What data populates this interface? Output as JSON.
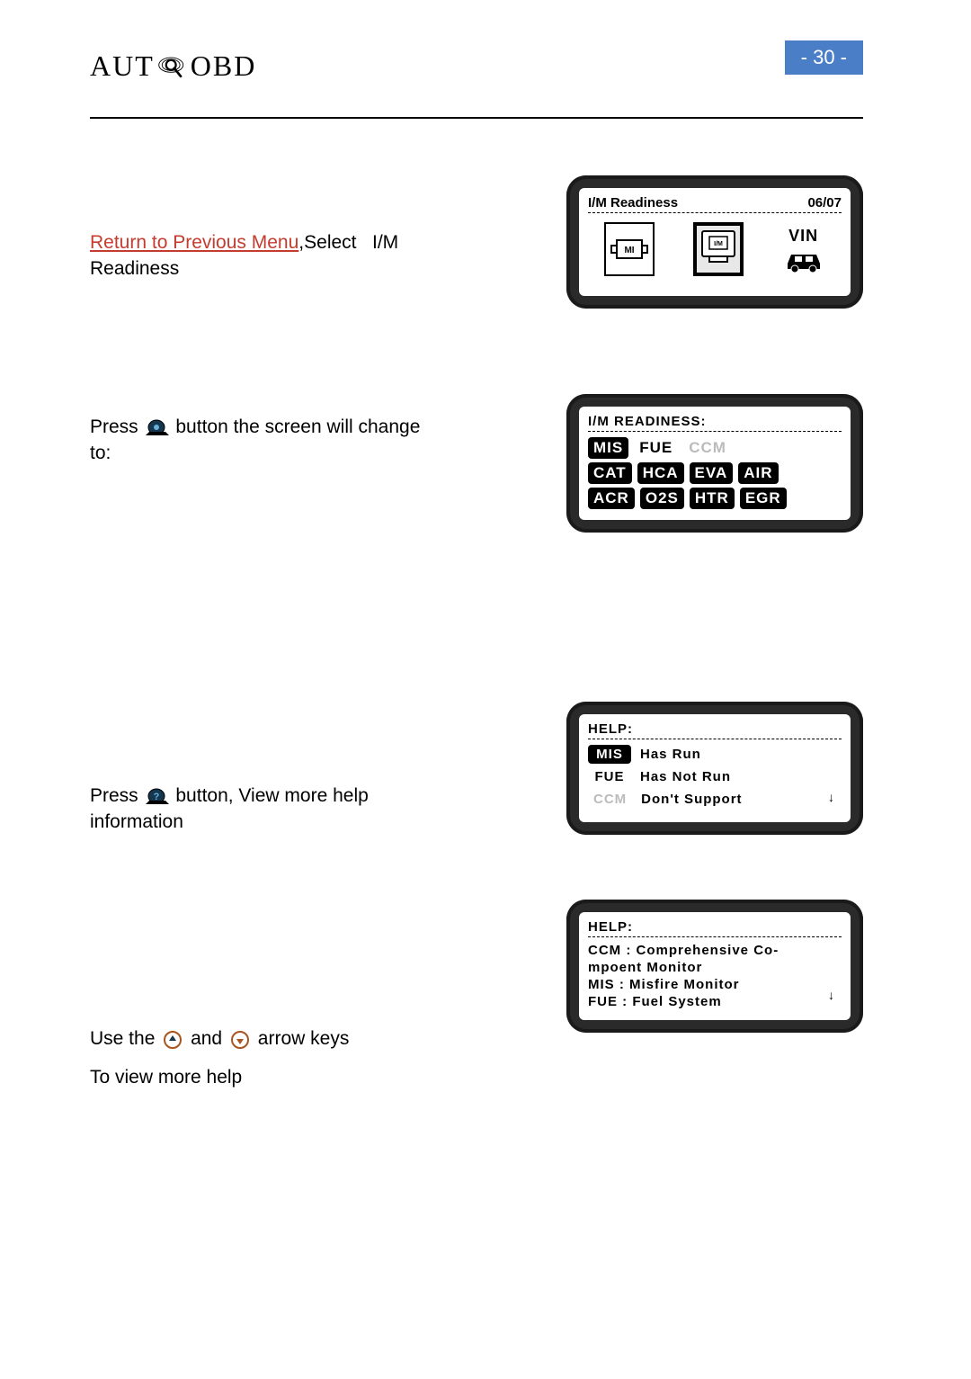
{
  "page_number": "- 30 -",
  "logo": {
    "left": "AUT",
    "right": "OBD"
  },
  "colors": {
    "badge_bg": "#4a7fc8",
    "link": "#c43c2f",
    "device_bg": "#2a2a2a"
  },
  "section1": {
    "link_text": "Return to Previous Menu",
    "rest": ",Select   I/M Readiness",
    "screen": {
      "title": "I/M  Readiness",
      "counter": "06/07",
      "icon1": "MI",
      "icon2": "I/M",
      "vin": "VIN"
    }
  },
  "section2": {
    "before": "Press",
    "after": "button the screen will change to:",
    "screen": {
      "title": "I/M READINESS:",
      "rows": [
        [
          {
            "label": "MIS",
            "style": "dark"
          },
          {
            "label": "FUE",
            "style": "outline"
          },
          {
            "label": "CCM",
            "style": "gray"
          }
        ],
        [
          {
            "label": "CAT",
            "style": "dark"
          },
          {
            "label": "HCA",
            "style": "dark"
          },
          {
            "label": "EVA",
            "style": "dark"
          },
          {
            "label": "AIR",
            "style": "dark"
          }
        ],
        [
          {
            "label": "ACR",
            "style": "dark"
          },
          {
            "label": "O2S",
            "style": "dark"
          },
          {
            "label": "HTR",
            "style": "dark"
          },
          {
            "label": "EGR",
            "style": "dark"
          }
        ]
      ]
    }
  },
  "section3": {
    "before": "Press",
    "after": "button, View more help information",
    "screen": {
      "title": "HELP:",
      "rows": [
        {
          "tag": "MIS",
          "tag_style": "dark",
          "text": "Has  Run"
        },
        {
          "tag": "FUE",
          "tag_style": "outline",
          "text": "Has  Not  Run"
        },
        {
          "tag": "CCM",
          "tag_style": "gray",
          "text": "Don't  Support"
        }
      ]
    }
  },
  "section4": {
    "p1_a": "Use the",
    "p1_b": "and",
    "p1_c": "arrow keys",
    "p2": "To view more help",
    "screen": {
      "title": "HELP:",
      "lines": [
        "CCM : Comprehensive  Co-",
        "mpoent  Monitor",
        "MIS : Misfire  Monitor",
        "FUE : Fuel  System"
      ]
    }
  }
}
